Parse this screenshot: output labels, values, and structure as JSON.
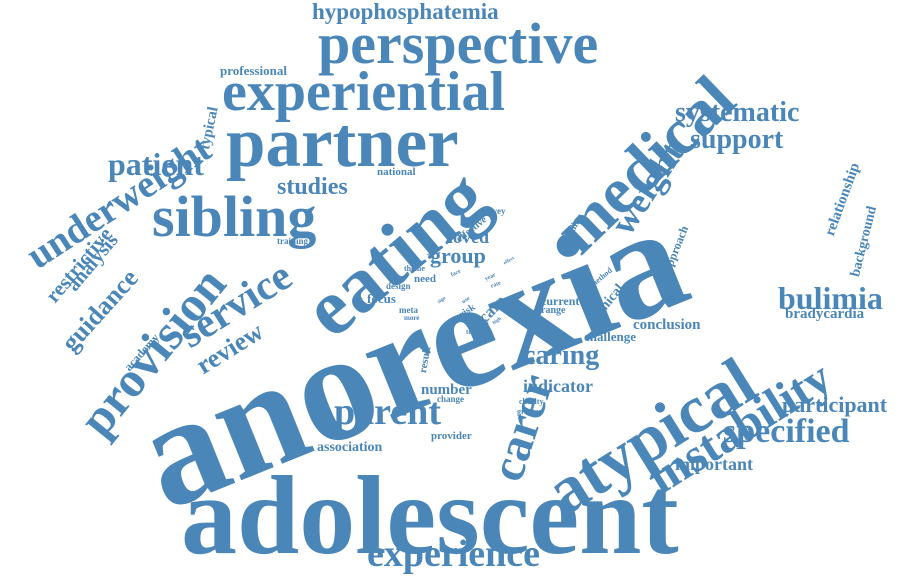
{
  "style": {
    "word_color": "#4a86b8",
    "background": "#ffffff"
  },
  "words": [
    "anorexia",
    "adolescent",
    "eating",
    "atypical",
    "partner",
    "medical",
    "experiential",
    "perspective",
    "sibling",
    "instability",
    "carer",
    "provision",
    "service",
    "underweight",
    "experience",
    "parent",
    "weight",
    "specified",
    "bulimia",
    "hypophosphatemia",
    "systematic",
    "support",
    "patient",
    "caring",
    "guidance",
    "review",
    "participant",
    "restrictive",
    "analysis",
    "studies",
    "group",
    "loved",
    "important",
    "indicator",
    "association",
    "number",
    "relationship",
    "background",
    "bradycardia",
    "conclusion",
    "challenge",
    "professional",
    "typical",
    "focus",
    "current",
    "range",
    "clinical",
    "approach",
    "finding",
    "academy",
    "result",
    "loss",
    "risk",
    "need",
    "care",
    "theme",
    "design",
    "meta",
    "total",
    "rapid",
    "more",
    "provider",
    "change",
    "charity",
    "greater",
    "national",
    "survey",
    "effective",
    "training",
    "method",
    "face",
    "year",
    "rate",
    "use",
    "life",
    "high",
    "effect",
    "work",
    "sign"
  ]
}
